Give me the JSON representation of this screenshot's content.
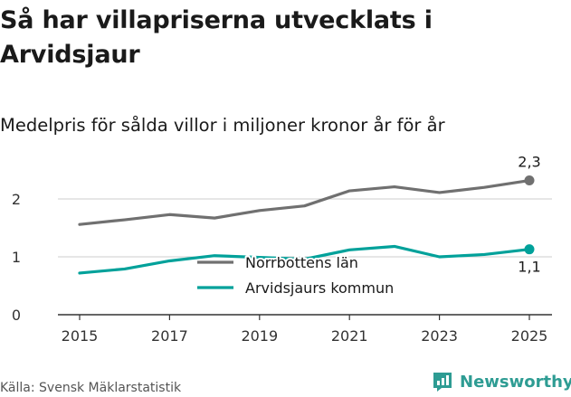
{
  "title": "Så har villapriserna utvecklats i Arvidsjaur",
  "subtitle": "Medelpris för sålda villor i miljoner kronor år för år",
  "source": "Källa: Svensk Mäklarstatistik",
  "brand": "Newsworthy",
  "colors": {
    "norrbotten": "#707070",
    "arvidsjaur": "#00a19a",
    "grid": "#cccccc",
    "brand": "#2e9c93"
  },
  "chart_data": {
    "type": "line",
    "title": "Så har villapriserna utvecklats i Arvidsjaur",
    "subtitle": "Medelpris för sålda villor i miljoner kronor år för år",
    "xlabel": "",
    "ylabel": "",
    "x": [
      2015,
      2016,
      2017,
      2018,
      2019,
      2020,
      2021,
      2022,
      2023,
      2024,
      2025
    ],
    "xticks": [
      "2015",
      "2017",
      "2019",
      "2021",
      "2023",
      "2025"
    ],
    "yticks": [
      "0",
      "1",
      "2"
    ],
    "ylim": [
      0,
      2.6
    ],
    "legend_position": "center",
    "series": [
      {
        "name": "Norrbottens län",
        "values": [
          1.56,
          1.64,
          1.73,
          1.67,
          1.8,
          1.88,
          2.14,
          2.21,
          2.11,
          2.2,
          2.32
        ],
        "end_label": "2,3"
      },
      {
        "name": "Arvidsjaurs kommun",
        "values": [
          0.72,
          0.79,
          0.93,
          1.02,
          0.99,
          0.96,
          1.12,
          1.18,
          1.0,
          1.04,
          1.13
        ],
        "end_label": "1,1"
      }
    ]
  }
}
